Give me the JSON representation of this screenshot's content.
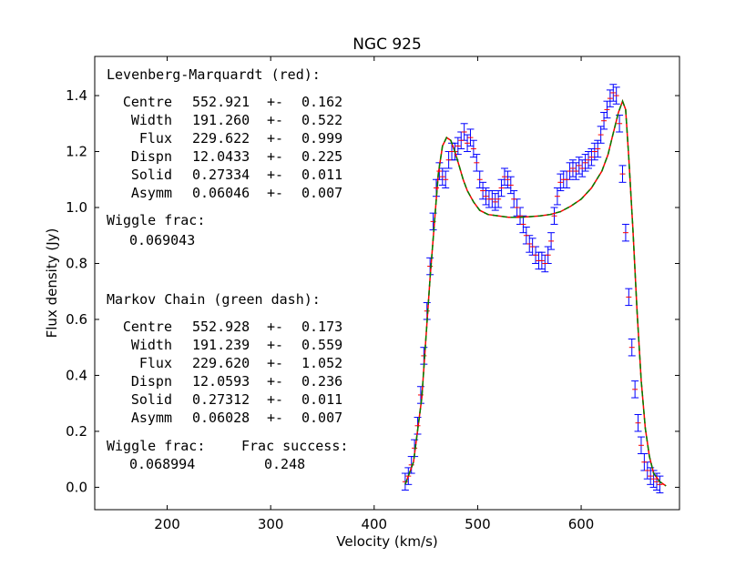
{
  "chart_data": {
    "type": "line",
    "title": "NGC 925",
    "xlabel": "Velocity (km/s)",
    "ylabel": "Flux density (Jy)",
    "xlim": [
      130,
      695
    ],
    "ylim": [
      -0.08,
      1.54
    ],
    "xticks": [
      200,
      300,
      400,
      500,
      600
    ],
    "yticks": [
      0.0,
      0.2,
      0.4,
      0.6,
      0.8,
      1.0,
      1.2,
      1.4
    ],
    "ytick_labels": [
      "0.0",
      "0.2",
      "0.4",
      "0.6",
      "0.8",
      "1.0",
      "1.2",
      "1.4"
    ],
    "grid": false,
    "series": [
      {
        "color": "#0000ff",
        "kind": "errorbar",
        "error": 0.03,
        "x": [
          430,
          433,
          436,
          439,
          442,
          445,
          448,
          451,
          454,
          457,
          460,
          463,
          466,
          469,
          472,
          475,
          478,
          481,
          484,
          487,
          490,
          493,
          496,
          499,
          502,
          505,
          508,
          511,
          514,
          517,
          520,
          523,
          526,
          529,
          532,
          535,
          538,
          541,
          544,
          547,
          550,
          553,
          556,
          559,
          562,
          565,
          568,
          571,
          574,
          577,
          580,
          583,
          586,
          589,
          592,
          595,
          598,
          601,
          604,
          607,
          610,
          613,
          616,
          619,
          622,
          625,
          628,
          631,
          634,
          637,
          640,
          643,
          646,
          649,
          652,
          655,
          658,
          661,
          664,
          667,
          670,
          673,
          676
        ],
        "y": [
          0.02,
          0.04,
          0.08,
          0.14,
          0.22,
          0.33,
          0.47,
          0.63,
          0.79,
          0.95,
          1.07,
          1.13,
          1.11,
          1.1,
          1.17,
          1.2,
          1.2,
          1.22,
          1.24,
          1.27,
          1.23,
          1.25,
          1.21,
          1.16,
          1.1,
          1.06,
          1.04,
          1.03,
          1.03,
          1.02,
          1.03,
          1.07,
          1.11,
          1.1,
          1.08,
          1.03,
          1.0,
          0.97,
          0.94,
          0.9,
          0.87,
          0.86,
          0.83,
          0.81,
          0.81,
          0.8,
          0.83,
          0.88,
          0.97,
          1.04,
          1.09,
          1.1,
          1.1,
          1.13,
          1.14,
          1.13,
          1.15,
          1.14,
          1.16,
          1.17,
          1.18,
          1.2,
          1.21,
          1.26,
          1.31,
          1.35,
          1.39,
          1.41,
          1.4,
          1.3,
          1.12,
          0.91,
          0.68,
          0.5,
          0.35,
          0.23,
          0.15,
          0.09,
          0.06,
          0.04,
          0.03,
          0.02,
          0.01
        ]
      },
      {
        "name": "Levenberg-Marquardt",
        "color": "#ff0000",
        "kind": "line",
        "x": [
          430,
          438,
          446,
          454,
          462,
          466,
          470,
          474,
          478,
          482,
          486,
          490,
          496,
          502,
          510,
          520,
          530,
          540,
          550,
          560,
          570,
          580,
          590,
          600,
          610,
          620,
          626,
          630,
          636,
          640,
          643,
          646,
          650,
          654,
          658,
          662,
          666,
          670,
          676,
          682
        ],
        "y": [
          0.01,
          0.09,
          0.32,
          0.75,
          1.12,
          1.22,
          1.25,
          1.24,
          1.2,
          1.15,
          1.1,
          1.06,
          1.02,
          0.99,
          0.975,
          0.97,
          0.965,
          0.965,
          0.967,
          0.97,
          0.975,
          0.985,
          1.005,
          1.03,
          1.07,
          1.13,
          1.19,
          1.25,
          1.34,
          1.38,
          1.35,
          1.18,
          0.92,
          0.63,
          0.38,
          0.21,
          0.11,
          0.05,
          0.02,
          0.005
        ]
      },
      {
        "name": "Markov Chain",
        "color": "#008000",
        "kind": "dash",
        "x": [
          430,
          438,
          446,
          454,
          462,
          466,
          470,
          474,
          478,
          482,
          486,
          490,
          496,
          502,
          510,
          520,
          530,
          540,
          550,
          560,
          570,
          580,
          590,
          600,
          610,
          620,
          626,
          630,
          636,
          640,
          643,
          646,
          650,
          654,
          658,
          662,
          666,
          670,
          676,
          682
        ],
        "y": [
          0.01,
          0.09,
          0.32,
          0.75,
          1.12,
          1.22,
          1.25,
          1.24,
          1.2,
          1.15,
          1.1,
          1.06,
          1.02,
          0.99,
          0.975,
          0.97,
          0.965,
          0.965,
          0.967,
          0.97,
          0.975,
          0.985,
          1.005,
          1.03,
          1.07,
          1.13,
          1.19,
          1.25,
          1.34,
          1.38,
          1.35,
          1.18,
          0.92,
          0.63,
          0.38,
          0.21,
          0.11,
          0.05,
          0.02,
          0.005
        ]
      }
    ],
    "annotations": {
      "lm_header": "Levenberg-Marquardt (red):",
      "lm_rows": [
        {
          "label": "Centre",
          "value": "552.921",
          "pm": "+-",
          "err": "0.162"
        },
        {
          "label": "Width",
          "value": "191.260",
          "pm": "+-",
          "err": "0.522"
        },
        {
          "label": "Flux",
          "value": "229.622",
          "pm": "+-",
          "err": "0.999"
        },
        {
          "label": "Dispn",
          "value": "12.0433",
          "pm": "+-",
          "err": "0.225"
        },
        {
          "label": "Solid",
          "value": "0.27334",
          "pm": "+-",
          "err": "0.011"
        },
        {
          "label": "Asymm",
          "value": "0.06046",
          "pm": "+-",
          "err": "0.007"
        }
      ],
      "lm_wiggle_label": "Wiggle frac:",
      "lm_wiggle_value": "0.069043",
      "mc_header": "Markov Chain (green dash):",
      "mc_rows": [
        {
          "label": "Centre",
          "value": "552.928",
          "pm": "+-",
          "err": "0.173"
        },
        {
          "label": "Width",
          "value": "191.239",
          "pm": "+-",
          "err": "0.559"
        },
        {
          "label": "Flux",
          "value": "229.620",
          "pm": "+-",
          "err": "1.052"
        },
        {
          "label": "Dispn",
          "value": "12.0593",
          "pm": "+-",
          "err": "0.236"
        },
        {
          "label": "Solid",
          "value": "0.27312",
          "pm": "+-",
          "err": "0.011"
        },
        {
          "label": "Asymm",
          "value": "0.06028",
          "pm": "+-",
          "err": "0.007"
        }
      ],
      "mc_wiggle_label": "Wiggle frac:",
      "mc_wiggle_value": "0.068994",
      "mc_success_label": "Frac success:",
      "mc_success_value": "0.248"
    }
  }
}
